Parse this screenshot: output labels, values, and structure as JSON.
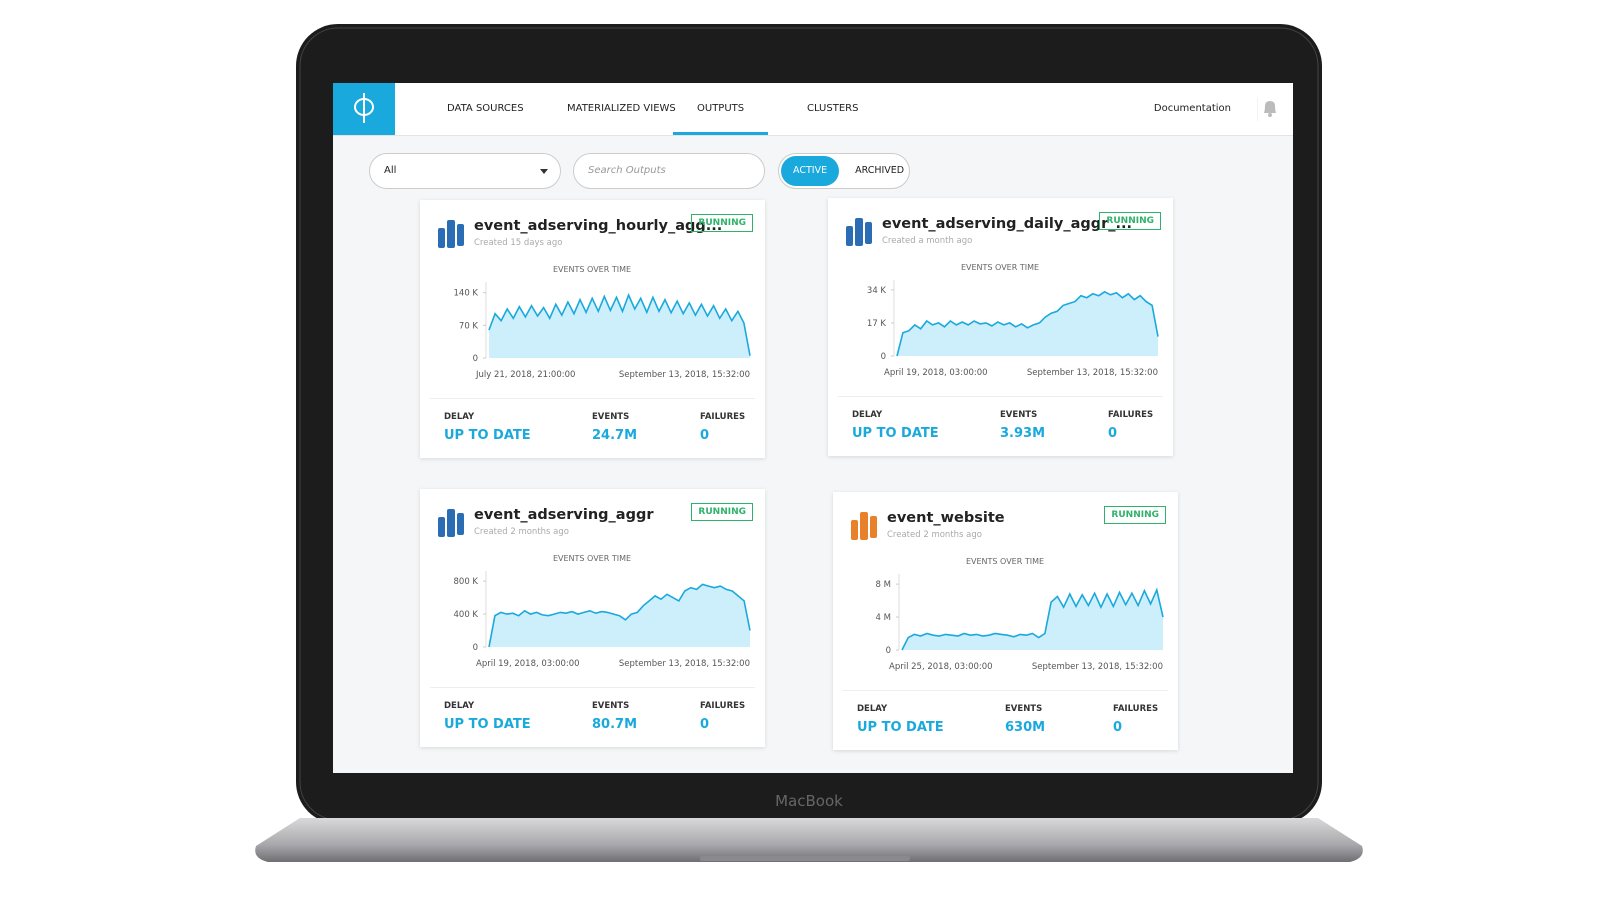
{
  "nav": {
    "items": [
      "DATA SOURCES",
      "MATERIALIZED VIEWS",
      "OUTPUTS",
      "CLUSTERS"
    ],
    "active": 2,
    "documentation": "Documentation"
  },
  "filters": {
    "select": "All",
    "search_placeholder": "Search Outputs",
    "toggle": [
      "ACTIVE",
      "ARCHIVED"
    ],
    "toggle_active": 0
  },
  "laptop_brand": "MacBook",
  "cards": [
    {
      "name": "event_adserving_hourly_agg...",
      "created": "Created 15 days ago",
      "status": "RUNNING",
      "icon_color": "#2a6db5",
      "chart": {
        "type": "area",
        "title": "EVENTS OVER TIME",
        "color": "#1aa9dc",
        "ylim": [
          0,
          150000
        ],
        "yticks": [
          {
            "value": 0,
            "label": "0"
          },
          {
            "value": 70000,
            "label": "70 K"
          },
          {
            "value": 140000,
            "label": "140 K"
          }
        ],
        "x_labels": [
          "July 21, 2018, 21:00:00",
          "September 13, 2018, 15:32:00"
        ],
        "values": [
          60000,
          95000,
          80000,
          105000,
          85000,
          110000,
          88000,
          112000,
          90000,
          108000,
          85000,
          115000,
          92000,
          120000,
          95000,
          125000,
          98000,
          128000,
          100000,
          132000,
          102000,
          130000,
          100000,
          135000,
          105000,
          128000,
          98000,
          130000,
          100000,
          125000,
          97000,
          122000,
          95000,
          118000,
          92000,
          115000,
          90000,
          112000,
          85000,
          105000,
          80000,
          100000,
          75000,
          5000
        ]
      },
      "stats": [
        {
          "label": "DELAY",
          "value": "UP TO DATE"
        },
        {
          "label": "EVENTS",
          "value": "24.7M"
        },
        {
          "label": "FAILURES",
          "value": 0
        }
      ]
    },
    {
      "name": "event_adserving_daily_aggr_...",
      "created": "Created a month ago",
      "status": "RUNNING",
      "icon_color": "#2a6db5",
      "chart": {
        "type": "area",
        "title": "EVENTS OVER TIME",
        "color": "#1aa9dc",
        "ylim": [
          0,
          36000
        ],
        "yticks": [
          {
            "value": 0,
            "label": "0"
          },
          {
            "value": 17000,
            "label": "17 K"
          },
          {
            "value": 34000,
            "label": "34 K"
          }
        ],
        "x_labels": [
          "April 19, 2018, 03:00:00",
          "September 13, 2018, 15:32:00"
        ],
        "values": [
          0,
          12000,
          13000,
          16000,
          14000,
          18000,
          16000,
          17000,
          15000,
          18000,
          16000,
          17500,
          16000,
          18000,
          16500,
          17000,
          15500,
          17500,
          16000,
          17000,
          15000,
          16500,
          14500,
          16000,
          17000,
          20000,
          22000,
          23000,
          26000,
          27000,
          28000,
          31000,
          30000,
          32000,
          31000,
          33000,
          31500,
          32500,
          30000,
          32000,
          29000,
          31000,
          28000,
          26000,
          10000
        ]
      },
      "stats": [
        {
          "label": "DELAY",
          "value": "UP TO DATE"
        },
        {
          "label": "EVENTS",
          "value": "3.93M"
        },
        {
          "label": "FAILURES",
          "value": 0
        }
      ]
    },
    {
      "name": "event_adserving_aggr",
      "created": "Created 2 months ago",
      "status": "RUNNING",
      "icon_color": "#2a6db5",
      "chart": {
        "type": "area",
        "title": "EVENTS OVER TIME",
        "color": "#1aa9dc",
        "ylim": [
          0,
          850000
        ],
        "yticks": [
          {
            "value": 0,
            "label": "0"
          },
          {
            "value": 400000,
            "label": "400 K"
          },
          {
            "value": 800000,
            "label": "800 K"
          }
        ],
        "x_labels": [
          "April 19, 2018, 03:00:00",
          "September 13, 2018, 15:32:00"
        ],
        "values": [
          0,
          380000,
          420000,
          400000,
          410000,
          380000,
          440000,
          400000,
          420000,
          390000,
          380000,
          400000,
          420000,
          410000,
          430000,
          400000,
          420000,
          440000,
          410000,
          430000,
          420000,
          400000,
          380000,
          330000,
          400000,
          420000,
          500000,
          560000,
          620000,
          580000,
          640000,
          600000,
          560000,
          680000,
          720000,
          700000,
          760000,
          740000,
          720000,
          740000,
          700000,
          680000,
          620000,
          560000,
          200000
        ]
      },
      "stats": [
        {
          "label": "DELAY",
          "value": "UP TO DATE"
        },
        {
          "label": "EVENTS",
          "value": "80.7M"
        },
        {
          "label": "FAILURES",
          "value": 0
        }
      ]
    },
    {
      "name": "event_website",
      "created": "Created 2 months ago",
      "status": "RUNNING",
      "icon_color": "#e8822a",
      "chart": {
        "type": "area",
        "title": "EVENTS OVER TIME",
        "color": "#1aa9dc",
        "ylim": [
          0,
          8500000
        ],
        "yticks": [
          {
            "value": 0,
            "label": "0"
          },
          {
            "value": 4000000,
            "label": "4 M"
          },
          {
            "value": 8000000,
            "label": "8 M"
          }
        ],
        "x_labels": [
          "April 25, 2018, 03:00:00",
          "September 13, 2018, 15:32:00"
        ],
        "values": [
          0,
          1500000,
          1900000,
          1700000,
          2000000,
          1800000,
          1700000,
          1900000,
          1800000,
          1700000,
          2000000,
          1800000,
          1900000,
          1700000,
          1800000,
          2000000,
          1900000,
          1800000,
          1600000,
          1900000,
          1800000,
          2000000,
          1500000,
          2000000,
          5800000,
          6500000,
          5200000,
          6800000,
          5300000,
          6700000,
          5400000,
          6900000,
          5200000,
          6800000,
          5300000,
          7000000,
          5500000,
          6900000,
          5400000,
          7200000,
          5600000,
          7300000,
          4000000
        ]
      },
      "stats": [
        {
          "label": "DELAY",
          "value": "UP TO DATE"
        },
        {
          "label": "EVENTS",
          "value": "630M"
        },
        {
          "label": "FAILURES",
          "value": 0
        }
      ]
    }
  ]
}
